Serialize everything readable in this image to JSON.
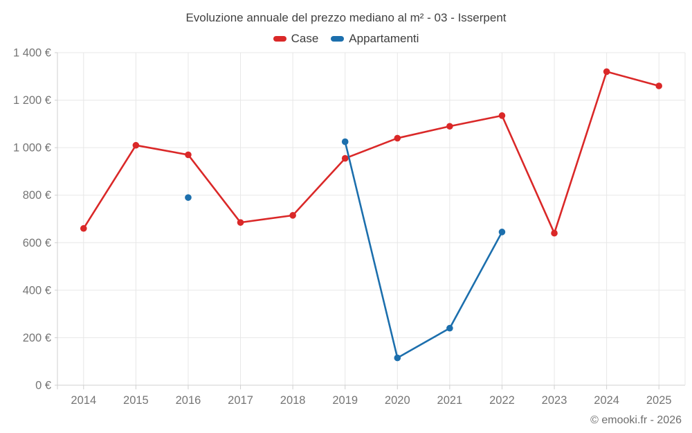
{
  "header": {
    "title": "Evoluzione annuale del prezzo mediano al m² - 03 - Isserpent"
  },
  "footer": {
    "credit": "© emooki.fr - 2026"
  },
  "chart_data": {
    "type": "line",
    "title": "Evoluzione annuale del prezzo mediano al m² - 03 - Isserpent",
    "categories": [
      "2014",
      "2015",
      "2016",
      "2017",
      "2018",
      "2019",
      "2020",
      "2021",
      "2022",
      "2023",
      "2024",
      "2025"
    ],
    "series": [
      {
        "name": "Case",
        "color": "#da2828",
        "values": [
          660,
          1010,
          970,
          685,
          715,
          955,
          1040,
          1090,
          1135,
          640,
          1320,
          1260
        ]
      },
      {
        "name": "Appartamenti",
        "color": "#1c6fad",
        "values": [
          null,
          null,
          790,
          null,
          null,
          1025,
          115,
          240,
          645,
          null,
          null,
          null
        ]
      }
    ],
    "xlabel": "",
    "ylabel": "",
    "ylim": [
      0,
      1400
    ],
    "ytick_step": 200,
    "ytick_suffix": " €",
    "thousands_separator": " ",
    "grid": true,
    "legend_position": "top",
    "marker": "circle"
  },
  "style": {
    "background": "#ffffff",
    "grid_color": "#e7e7e7",
    "axis_color": "#cfcfcf",
    "tick_label_color": "#757575",
    "title_color": "#414141",
    "legend_text_color": "#3c3c3c",
    "footer_color": "#6e6e6e"
  }
}
